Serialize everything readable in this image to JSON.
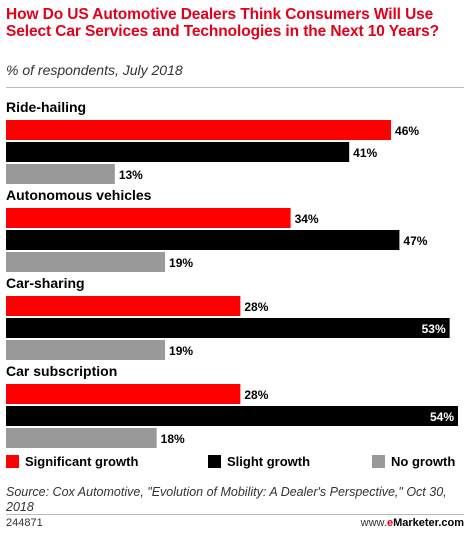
{
  "chart_data": {
    "type": "bar",
    "orientation": "horizontal",
    "title": "How Do US Automotive Dealers Think Consumers Will Use Select Car Services and Technologies in the Next 10 Years?",
    "subtitle": "% of respondents, July 2018",
    "categories": [
      "Ride-hailing",
      "Autonomous vehicles",
      "Car-sharing",
      "Car subscription"
    ],
    "series": [
      {
        "name": "Significant growth",
        "color": "#ff0000",
        "values": [
          46,
          34,
          28,
          28
        ]
      },
      {
        "name": "Slight growth",
        "color": "#000000",
        "values": [
          41,
          47,
          53,
          54
        ]
      },
      {
        "name": "No growth",
        "color": "#999999",
        "values": [
          13,
          19,
          19,
          18
        ]
      }
    ],
    "value_suffix": "%",
    "xlim": [
      0,
      54
    ],
    "legend": "bottom",
    "grid": false
  },
  "footer": {
    "source": "Source: Cox Automotive, \"Evolution of Mobility: A Dealer's Perspective,\" Oct 30, 2018",
    "chart_id": "244871",
    "brand_prefix": "www.",
    "brand_e": "e",
    "brand_rest": "Marketer.com"
  }
}
